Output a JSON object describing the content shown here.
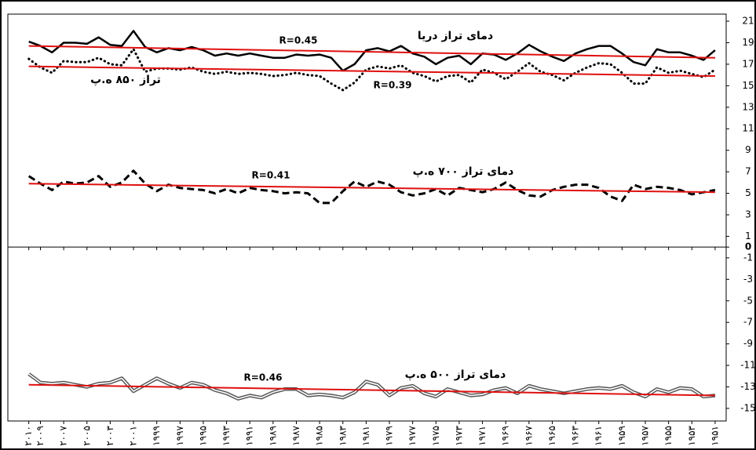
{
  "chart_data": {
    "type": "line",
    "x": [
      2010,
      2009,
      2008,
      2007,
      2006,
      2005,
      2004,
      2003,
      2002,
      2001,
      2000,
      1999,
      1998,
      1997,
      1996,
      1995,
      1994,
      1993,
      1992,
      1991,
      1990,
      1989,
      1988,
      1987,
      1986,
      1985,
      1984,
      1983,
      1982,
      1981,
      1980,
      1979,
      1978,
      1977,
      1976,
      1975,
      1974,
      1973,
      1972,
      1971,
      1970,
      1969,
      1968,
      1967,
      1966,
      1965,
      1964,
      1963,
      1962,
      1961,
      1960,
      1959,
      1958,
      1957,
      1956,
      1955,
      1954,
      1953,
      1952,
      1951
    ],
    "xlim": [
      2011.8,
      1950.05
    ],
    "xticks": [
      {
        "value": 2010,
        "label": "۲۰۱۰"
      },
      {
        "value": 2009,
        "label": "۲۰۰۹"
      },
      {
        "value": 2007,
        "label": "۲۰۰۷"
      },
      {
        "value": 2005,
        "label": "۲۰۰۵"
      },
      {
        "value": 2003,
        "label": "۲۰۰۳"
      },
      {
        "value": 2001,
        "label": "۲۰۰۱"
      },
      {
        "value": 1999,
        "label": "۱۹۹۹"
      },
      {
        "value": 1997,
        "label": "۱۹۹۷"
      },
      {
        "value": 1995,
        "label": "۱۹۹۵"
      },
      {
        "value": 1993,
        "label": "۱۹۹۳"
      },
      {
        "value": 1991,
        "label": "۱۹۹۱"
      },
      {
        "value": 1989,
        "label": "۱۹۸۹"
      },
      {
        "value": 1987,
        "label": "۱۹۸۷"
      },
      {
        "value": 1985,
        "label": "۱۹۸۵"
      },
      {
        "value": 1983,
        "label": "۱۹۸۳"
      },
      {
        "value": 1981,
        "label": "۱۹۸۱"
      },
      {
        "value": 1979,
        "label": "۱۹۷۹"
      },
      {
        "value": 1977,
        "label": "۱۹۷۷"
      },
      {
        "value": 1975,
        "label": "۱۹۷۵"
      },
      {
        "value": 1973,
        "label": "۱۹۷۳"
      },
      {
        "value": 1971,
        "label": "۱۹۷۱"
      },
      {
        "value": 1969,
        "label": "۱۹۶۹"
      },
      {
        "value": 1967,
        "label": "۱۹۶۷"
      },
      {
        "value": 1965,
        "label": "۱۹۶۵"
      },
      {
        "value": 1963,
        "label": "۱۹۶۳"
      },
      {
        "value": 1961,
        "label": "۱۹۶۱"
      },
      {
        "value": 1959,
        "label": "۱۹۵۹"
      },
      {
        "value": 1957,
        "label": "۱۹۵۷"
      },
      {
        "value": 1955,
        "label": "۱۹۵۵"
      },
      {
        "value": 1953,
        "label": "۱۹۵۳"
      },
      {
        "value": 1951,
        "label": "۱۹۵۱"
      }
    ],
    "ylim": [
      -16.17,
      21.66
    ],
    "yticks": [
      21,
      19,
      17,
      15,
      13,
      11,
      9,
      7,
      5,
      3,
      1,
      0,
      -1,
      -3,
      -5,
      -7,
      -9,
      -11,
      -13,
      -15
    ],
    "series": [
      {
        "name": "دمای تراز دریا",
        "color": "#000000",
        "style": "solid",
        "values": [
          19.1,
          18.7,
          18.1,
          19.0,
          19.0,
          18.9,
          19.5,
          18.8,
          18.7,
          20.1,
          18.6,
          18.1,
          18.5,
          18.3,
          18.6,
          18.3,
          17.8,
          18.0,
          17.8,
          18.0,
          17.8,
          17.6,
          17.6,
          17.9,
          17.8,
          17.9,
          17.6,
          16.4,
          17.0,
          18.3,
          18.5,
          18.2,
          18.7,
          18.0,
          17.7,
          17.0,
          17.6,
          17.8,
          17.0,
          18.0,
          17.9,
          17.4,
          18.0,
          18.8,
          18.2,
          17.7,
          17.3,
          18.0,
          18.4,
          18.7,
          18.7,
          18.0,
          17.2,
          16.9,
          18.4,
          18.1,
          18.1,
          17.8,
          17.4,
          18.3
        ],
        "trend": {
          "label": "R=0.45",
          "x": [
            2010,
            1951
          ],
          "values": [
            18.7,
            17.6
          ]
        }
      },
      {
        "name": "تراز ۸۵۰ ه.پ",
        "color": "#000000",
        "style": "dotted",
        "values": [
          17.5,
          16.7,
          16.2,
          17.3,
          17.2,
          17.2,
          17.6,
          17.0,
          16.9,
          18.4,
          16.3,
          16.6,
          16.6,
          16.5,
          16.7,
          16.3,
          16.1,
          16.3,
          16.1,
          16.2,
          16.1,
          15.9,
          16.0,
          16.2,
          16.0,
          15.9,
          15.2,
          14.6,
          15.3,
          16.5,
          16.8,
          16.6,
          16.9,
          16.2,
          15.9,
          15.4,
          15.9,
          16.0,
          15.3,
          16.5,
          16.2,
          15.6,
          16.3,
          17.1,
          16.3,
          16.0,
          15.5,
          16.2,
          16.7,
          17.1,
          17.0,
          16.2,
          15.2,
          15.2,
          16.7,
          16.2,
          16.4,
          16.1,
          15.8,
          16.5
        ],
        "trend": {
          "label": "R=0.39",
          "x": [
            2010,
            1951
          ],
          "values": [
            16.8,
            15.9
          ]
        }
      },
      {
        "name": "دمای تراز ۷۰۰ ه.پ",
        "color": "#000000",
        "style": "dashed",
        "values": [
          6.6,
          5.9,
          5.3,
          6.1,
          5.9,
          6.0,
          6.6,
          5.6,
          6.0,
          7.1,
          5.9,
          5.2,
          5.8,
          5.5,
          5.4,
          5.3,
          5.0,
          5.4,
          5.0,
          5.5,
          5.3,
          5.2,
          5.0,
          5.1,
          5.0,
          4.1,
          4.1,
          5.2,
          6.1,
          5.6,
          6.1,
          5.8,
          5.1,
          4.8,
          5.0,
          5.4,
          4.8,
          5.5,
          5.3,
          5.1,
          5.4,
          6.0,
          5.3,
          4.8,
          4.7,
          5.3,
          5.6,
          5.8,
          5.8,
          5.5,
          4.7,
          4.3,
          5.8,
          5.4,
          5.6,
          5.5,
          5.3,
          4.9,
          5.1,
          5.3
        ],
        "trend": {
          "label": "R=0.41",
          "x": [
            2010,
            1951
          ],
          "values": [
            5.9,
            5.1
          ]
        }
      },
      {
        "name": "دمای تراز ۵۰۰ ه.پ",
        "color": "#555555",
        "style": "double",
        "values": [
          -11.8,
          -12.6,
          -12.7,
          -12.6,
          -12.8,
          -13.0,
          -12.7,
          -12.6,
          -12.2,
          -13.4,
          -12.8,
          -12.2,
          -12.7,
          -13.1,
          -12.6,
          -12.8,
          -13.3,
          -13.6,
          -14.1,
          -13.8,
          -14.0,
          -13.5,
          -13.2,
          -13.2,
          -13.8,
          -13.7,
          -13.8,
          -14.0,
          -13.5,
          -12.5,
          -12.8,
          -13.8,
          -13.1,
          -12.9,
          -13.6,
          -13.9,
          -13.2,
          -13.5,
          -13.8,
          -13.7,
          -13.3,
          -13.1,
          -13.6,
          -12.9,
          -13.2,
          -13.4,
          -13.6,
          -13.4,
          -13.2,
          -13.1,
          -13.2,
          -12.9,
          -13.5,
          -13.9,
          -13.2,
          -13.5,
          -13.1,
          -13.2,
          -13.9,
          -13.8
        ],
        "trend": {
          "label": "R=0.46",
          "x": [
            2010,
            1951
          ],
          "values": [
            -12.8,
            -13.8
          ]
        }
      }
    ],
    "trend_color": "#e01010"
  }
}
